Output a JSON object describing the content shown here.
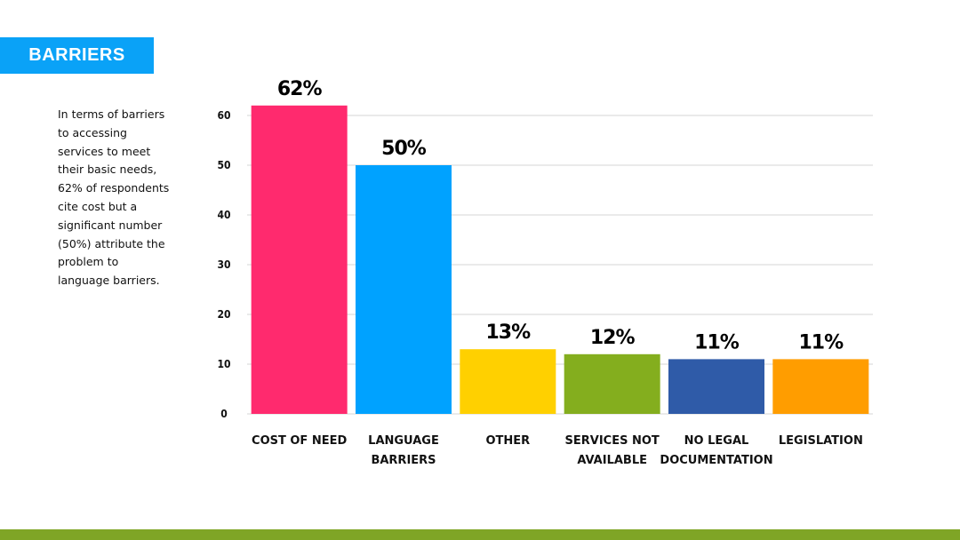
{
  "slide": {
    "title": "BARRIERS",
    "description": "In terms of barriers to accessing services to meet their basic needs, 62% of respondents cite cost but a significant number (50%) attribute the problem to language barriers."
  },
  "colors": {
    "title_banner": "#0AA2F7",
    "footer_bar": "#7FA526",
    "gridline": "#d4d4d4",
    "axis_text": "#111111"
  },
  "chart_data": {
    "type": "bar",
    "title": "",
    "xlabel": "",
    "ylabel": "",
    "ylim": [
      0,
      60
    ],
    "yticks": [
      0,
      10,
      20,
      30,
      40,
      50,
      60
    ],
    "grid": true,
    "categories": [
      [
        "COST OF NEED"
      ],
      [
        "LANGUAGE",
        "BARRIERS"
      ],
      [
        "OTHER"
      ],
      [
        "SERVICES NOT",
        "AVAILABLE"
      ],
      [
        "NO LEGAL",
        "DOCUMENTATION"
      ],
      [
        "LEGISLATION"
      ]
    ],
    "values": [
      62,
      50,
      13,
      12,
      11,
      11
    ],
    "data_labels": [
      "62%",
      "50%",
      "13%",
      "12%",
      "11%",
      "11%"
    ],
    "bar_colors": [
      "#FF2A6E",
      "#00A2FF",
      "#FFD000",
      "#84AE1E",
      "#2F5BA8",
      "#FF9D00"
    ]
  }
}
